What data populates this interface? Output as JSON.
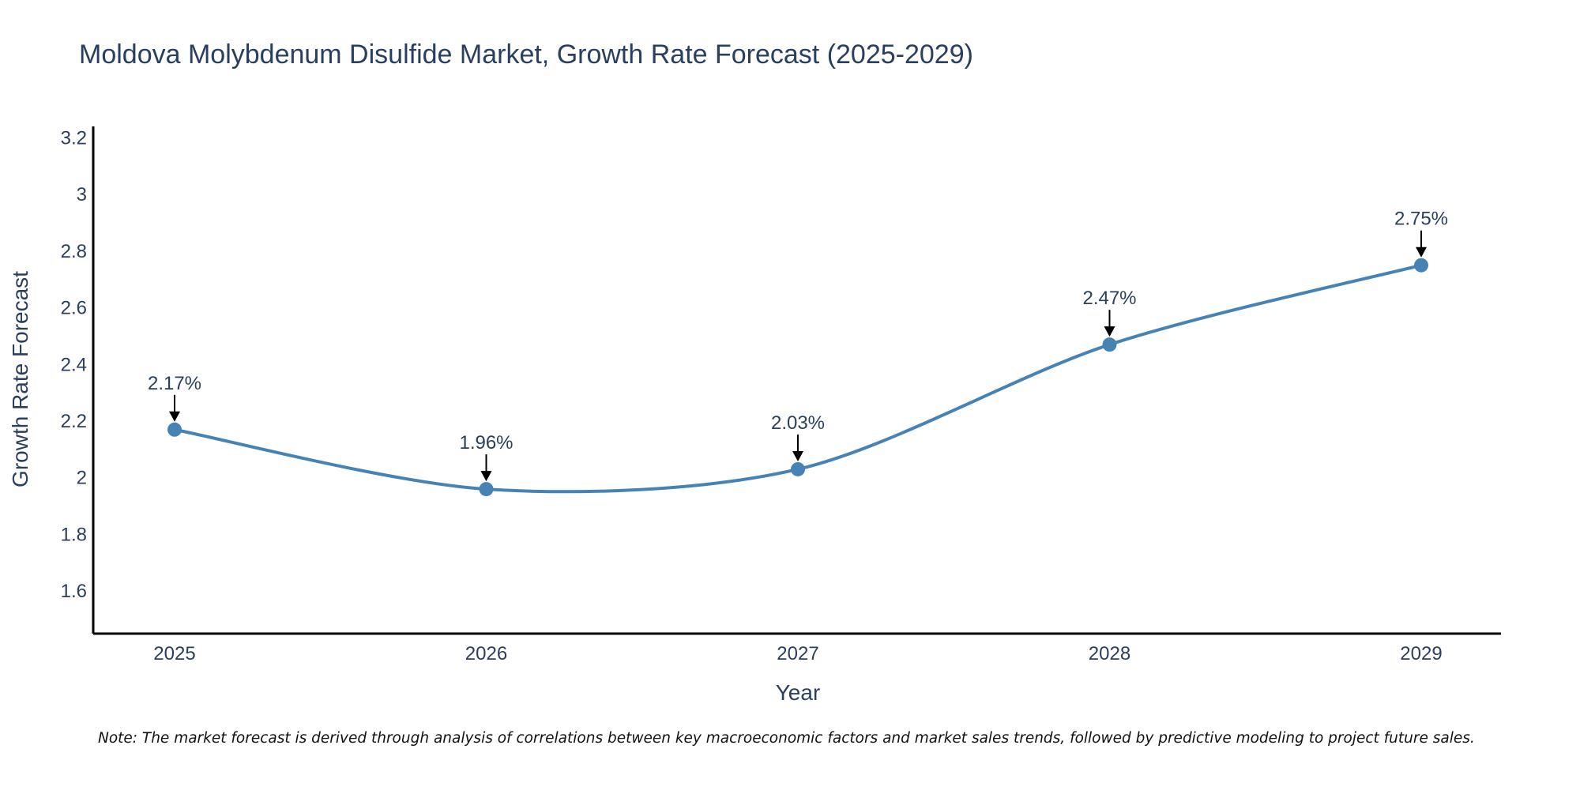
{
  "chart_data": {
    "type": "line",
    "title": "Moldova Molybdenum Disulfide Market, Growth Rate Forecast (2025-2029)",
    "xlabel": "Year",
    "ylabel": "Growth Rate Forecast",
    "categories": [
      "2025",
      "2026",
      "2027",
      "2028",
      "2029"
    ],
    "values": [
      2.17,
      1.96,
      2.03,
      2.47,
      2.75
    ],
    "data_labels": [
      "2.17%",
      "1.96%",
      "2.03%",
      "2.47%",
      "2.75%"
    ],
    "ylim": [
      1.45,
      3.24
    ],
    "yticks": [
      1.6,
      1.8,
      2,
      2.2,
      2.4,
      2.6,
      2.8,
      3,
      3.2
    ],
    "ytick_labels": [
      "1.6",
      "1.8",
      "2",
      "2.2",
      "2.4",
      "2.6",
      "2.8",
      "3",
      "3.2"
    ],
    "grid": false,
    "line_color": "#4682b4",
    "marker_color": "#4682b4",
    "arrow_color": "#000000",
    "note": "Note: The market forecast is derived through analysis of correlations between key macroeconomic factors and market sales trends, followed by predictive modeling to project future sales."
  }
}
